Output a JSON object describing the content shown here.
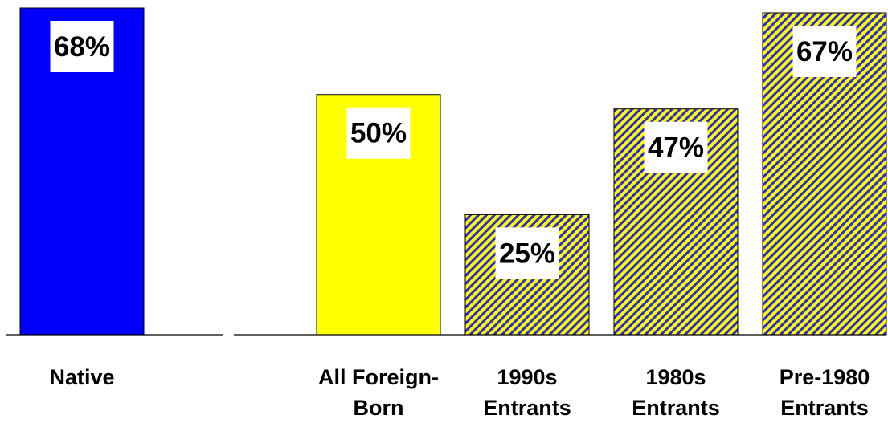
{
  "chart_data": {
    "type": "bar",
    "title": "",
    "xlabel": "",
    "ylabel": "",
    "ylim": [
      0,
      68
    ],
    "grid": false,
    "legend": "none",
    "categories": [
      [
        "Native"
      ],
      [
        "All Foreign-",
        "Born"
      ],
      [
        "1990s",
        "Entrants"
      ],
      [
        "1980s",
        "Entrants"
      ],
      [
        "Pre-1980",
        "Entrants"
      ]
    ],
    "values": [
      68,
      50,
      25,
      47,
      67
    ],
    "value_labels": [
      "68%",
      "50%",
      "25%",
      "47%",
      "67%"
    ],
    "bar_styles": [
      "solid-blue",
      "solid-yellow",
      "hatched",
      "hatched",
      "hatched"
    ],
    "colors": {
      "blue": "#0000ff",
      "yellow": "#ffff00",
      "hatch_stripe": "#2b2bd6",
      "axis": "#000000"
    }
  }
}
